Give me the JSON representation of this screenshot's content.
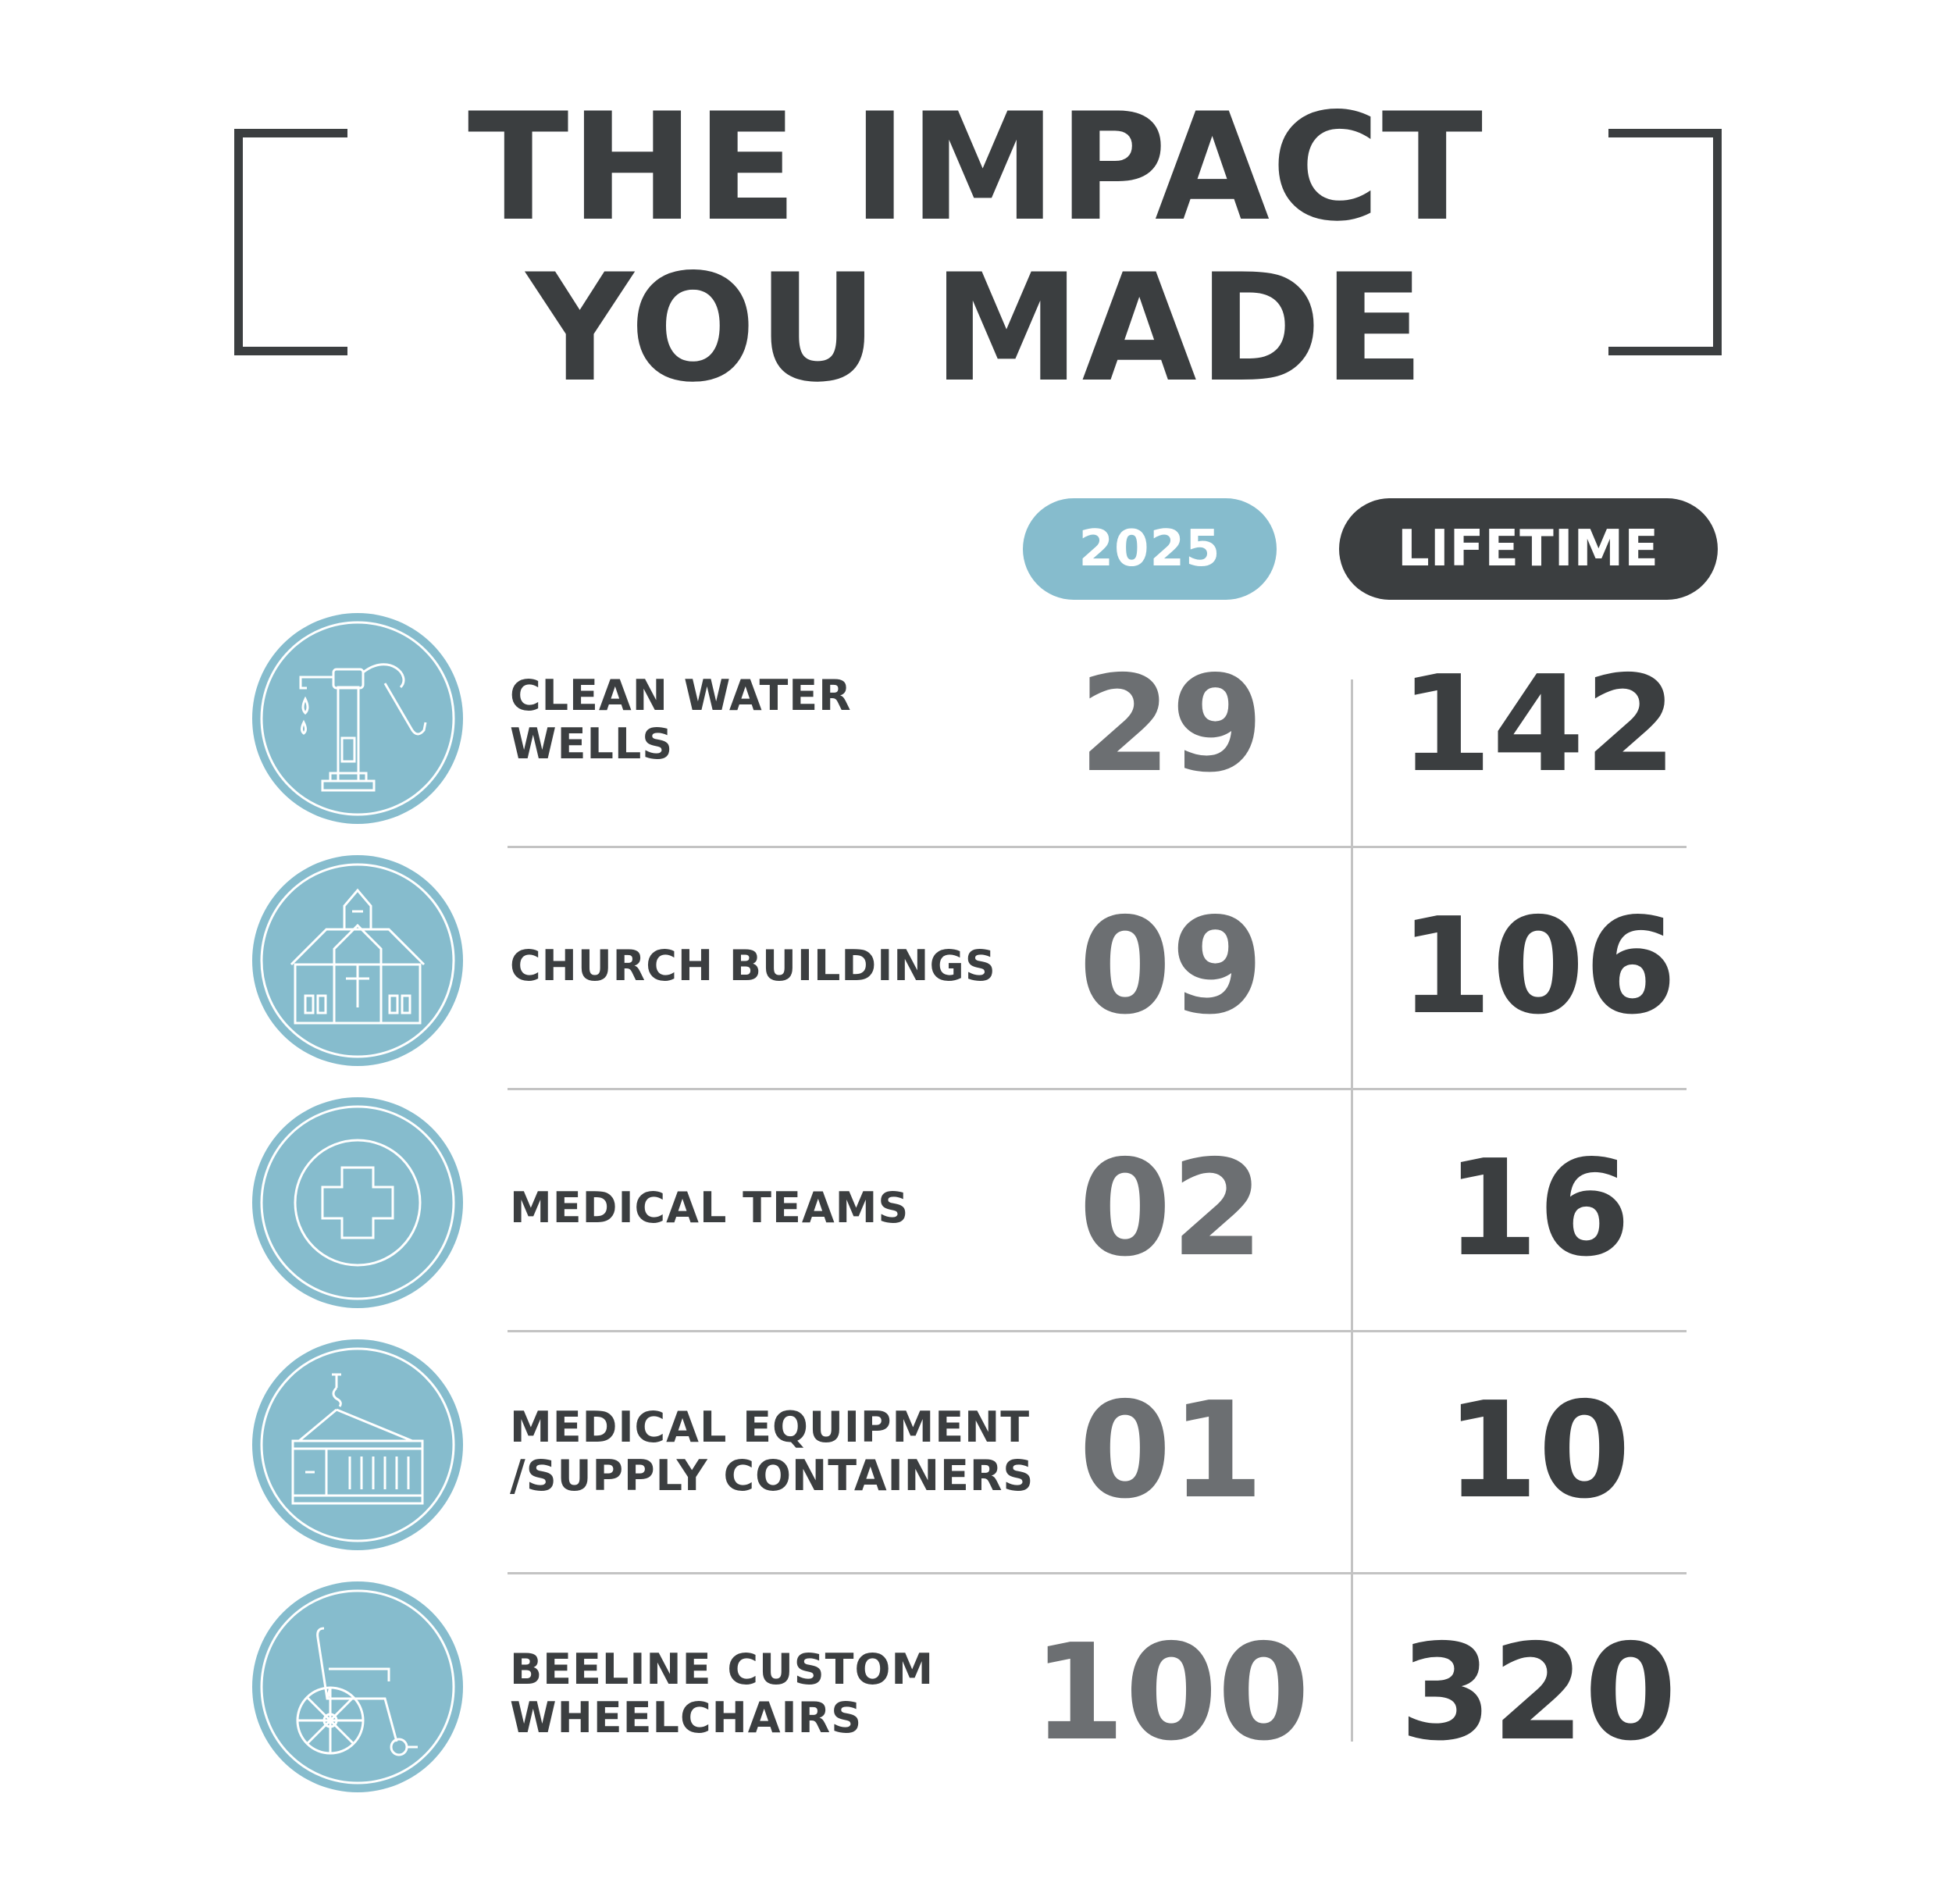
{
  "title": {
    "line1": "THE IMPACT",
    "line2": "YOU MADE"
  },
  "columns": {
    "year": "2025",
    "lifetime": "LIFETIME"
  },
  "rows": [
    {
      "label_line1": "CLEAN WATER",
      "label_line2": "WELLS",
      "year": "29",
      "lifetime": "142",
      "icon": "water-pump-icon"
    },
    {
      "label_line1": "CHURCH BUILDINGS",
      "label_line2": "",
      "year": "09",
      "lifetime": "106",
      "icon": "church-icon"
    },
    {
      "label_line1": "MEDICAL TEAMS",
      "label_line2": "",
      "year": "02",
      "lifetime": "16",
      "icon": "medical-cross-icon"
    },
    {
      "label_line1": "MEDICAL EQUIPMENT",
      "label_line2": "/SUPPLY CONTAINERS",
      "year": "01",
      "lifetime": "10",
      "icon": "shipping-container-icon"
    },
    {
      "label_line1": "BEELINE CUSTOM",
      "label_line2": "WHEELCHAIRS",
      "year": "100",
      "lifetime": "320",
      "icon": "wheelchair-icon"
    }
  ],
  "colors": {
    "accent": "#86bccd",
    "dark": "#3b3e40",
    "gray_number": "#6c6f72",
    "divider": "#c3c3c3"
  }
}
